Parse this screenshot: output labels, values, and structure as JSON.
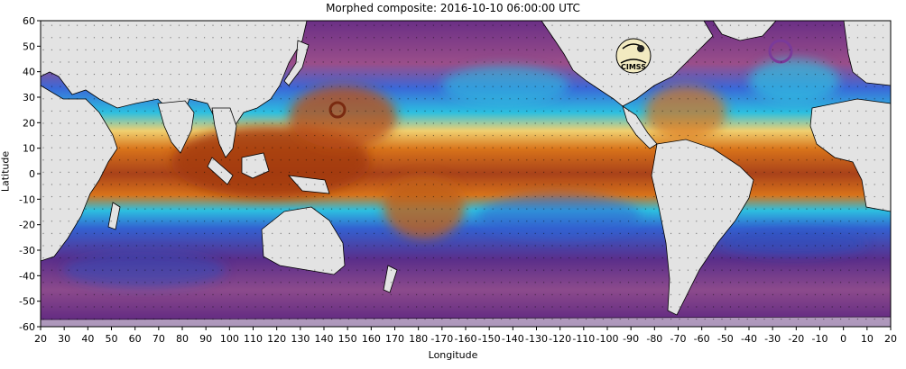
{
  "title": "Morphed composite: 2016-10-10 06:00:00 UTC",
  "axis": {
    "xlabel": "Longitude",
    "ylabel": "Latitude",
    "x_ticks": [
      "20",
      "30",
      "40",
      "50",
      "60",
      "70",
      "80",
      "90",
      "100",
      "110",
      "120",
      "130",
      "140",
      "150",
      "160",
      "170",
      "180",
      "-170",
      "-160",
      "-150",
      "-140",
      "-130",
      "-120",
      "-110",
      "-100",
      "-90",
      "-80",
      "-70",
      "-60",
      "-50",
      "-40",
      "-30",
      "-20",
      "-10",
      "0",
      "10",
      "20"
    ],
    "y_ticks": [
      "60",
      "50",
      "40",
      "30",
      "20",
      "10",
      "0",
      "-10",
      "-20",
      "-30",
      "-40",
      "-50",
      "-60"
    ]
  },
  "logo_text": "CIMSS",
  "colors": {
    "land": "#e3e3e3",
    "dry_deep": "#5a1e78",
    "dry": "#8a4a9a",
    "moderate": "#2f6fe0",
    "moist": "#25c0e0",
    "wet": "#ffffb0",
    "very_wet": "#e07a1f",
    "extreme": "#9a3410"
  }
}
